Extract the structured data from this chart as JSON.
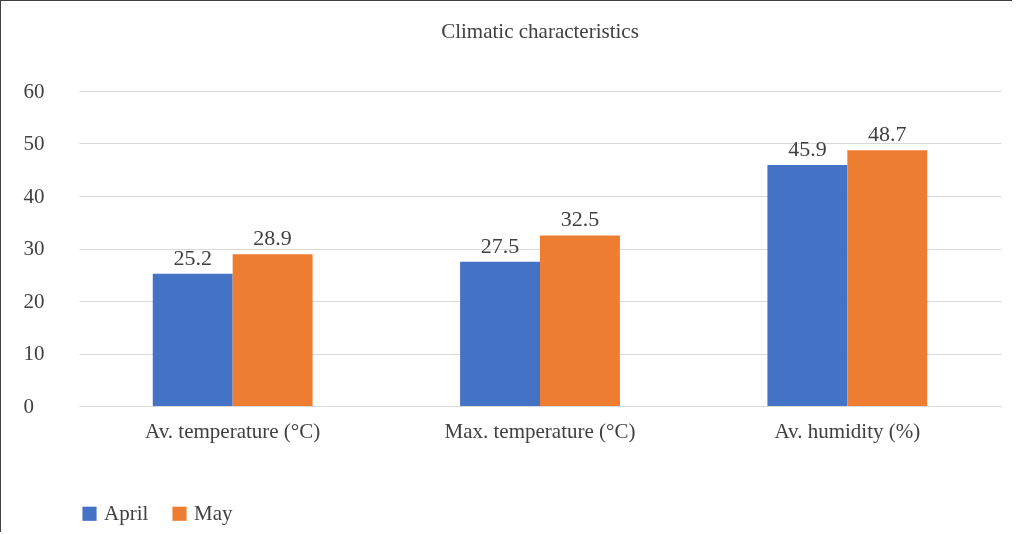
{
  "chart_data": {
    "type": "bar",
    "title": "Climatic characteristics",
    "categories": [
      "Av. temperature (°C)",
      "Max. temperature (°C)",
      "Av. humidity (%)"
    ],
    "series": [
      {
        "name": "April",
        "color": "#4472c4",
        "values": [
          25.2,
          27.5,
          45.9
        ]
      },
      {
        "name": "May",
        "color": "#ed7d31",
        "values": [
          28.9,
          32.5,
          48.7
        ]
      }
    ],
    "ylim": [
      0,
      60
    ],
    "yticks": [
      0,
      10,
      20,
      30,
      40,
      50,
      60
    ],
    "grid": "y",
    "legend": "bottom",
    "data_labels": true
  }
}
